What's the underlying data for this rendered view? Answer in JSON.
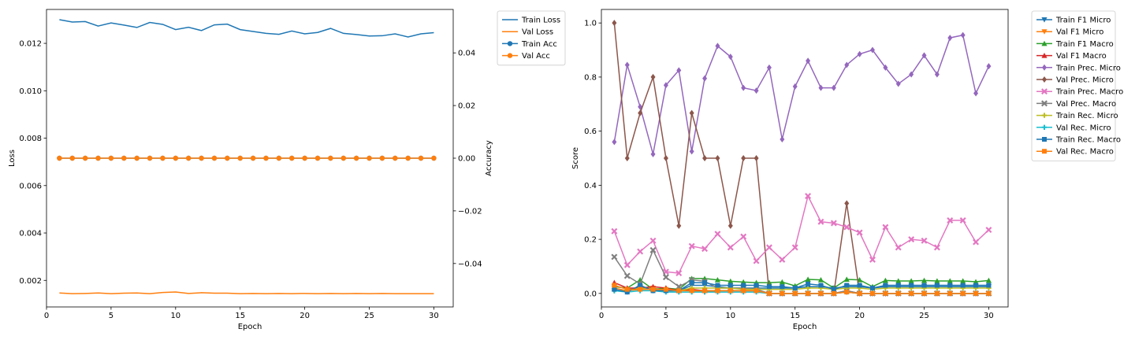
{
  "chart_data": [
    {
      "type": "line",
      "xlabel": "Epoch",
      "ylabel": "Loss",
      "ylabel_right": "Accuracy",
      "x": [
        1,
        2,
        3,
        4,
        5,
        6,
        7,
        8,
        9,
        10,
        11,
        12,
        13,
        14,
        15,
        16,
        17,
        18,
        19,
        20,
        21,
        22,
        23,
        24,
        25,
        26,
        27,
        28,
        29,
        30
      ],
      "xlim": [
        0,
        31.5
      ],
      "ylim": [
        0.00088,
        0.01343
      ],
      "ylim_right": [
        -0.0565,
        0.0565
      ],
      "xticks": [
        "0",
        "5",
        "10",
        "15",
        "20",
        "25",
        "30"
      ],
      "yticks": [
        "0.002",
        "0.004",
        "0.006",
        "0.008",
        "0.010",
        "0.012"
      ],
      "yticks_right": [
        "−0.04",
        "−0.02",
        "0.00",
        "0.02",
        "0.04"
      ],
      "legend_position": "outside-right",
      "series": [
        {
          "name": "Train Loss",
          "axis": "left",
          "color": "#1f77b4",
          "marker": "none",
          "values": [
            0.013,
            0.0129,
            0.01292,
            0.01273,
            0.01286,
            0.01277,
            0.01267,
            0.01288,
            0.0128,
            0.01258,
            0.01268,
            0.01254,
            0.01278,
            0.01281,
            0.01258,
            0.0125,
            0.01242,
            0.01238,
            0.01252,
            0.0124,
            0.01246,
            0.01263,
            0.01242,
            0.01237,
            0.01231,
            0.01232,
            0.0124,
            0.01227,
            0.0124,
            0.01245
          ]
        },
        {
          "name": "Val Loss",
          "axis": "left",
          "color": "#ff7f0e",
          "marker": "none",
          "values": [
            0.00147,
            0.00144,
            0.00145,
            0.00147,
            0.00144,
            0.00146,
            0.00147,
            0.00144,
            0.00149,
            0.00151,
            0.00145,
            0.00148,
            0.00146,
            0.00146,
            0.00144,
            0.00145,
            0.00144,
            0.00145,
            0.00144,
            0.00145,
            0.00144,
            0.00145,
            0.00144,
            0.00145,
            0.00144,
            0.00145,
            0.00144,
            0.00144,
            0.00144,
            0.00144
          ]
        },
        {
          "name": "Train Acc",
          "axis": "right",
          "color": "#1f77b4",
          "marker": "circle",
          "values": [
            0,
            0,
            0,
            0,
            0,
            0,
            0,
            0,
            0,
            0,
            0,
            0,
            0,
            0,
            0,
            0,
            0,
            0,
            0,
            0,
            0,
            0,
            0,
            0,
            0,
            0,
            0,
            0,
            0,
            0
          ]
        },
        {
          "name": "Val Acc",
          "axis": "right",
          "color": "#ff7f0e",
          "marker": "circle",
          "values": [
            0,
            0,
            0,
            0,
            0,
            0,
            0,
            0,
            0,
            0,
            0,
            0,
            0,
            0,
            0,
            0,
            0,
            0,
            0,
            0,
            0,
            0,
            0,
            0,
            0,
            0,
            0,
            0,
            0,
            0
          ]
        }
      ]
    },
    {
      "type": "line",
      "xlabel": "Epoch",
      "ylabel": "Score",
      "x": [
        1,
        2,
        3,
        4,
        5,
        6,
        7,
        8,
        9,
        10,
        11,
        12,
        13,
        14,
        15,
        16,
        17,
        18,
        19,
        20,
        21,
        22,
        23,
        24,
        25,
        26,
        27,
        28,
        29,
        30
      ],
      "xlim": [
        0,
        31.5
      ],
      "ylim": [
        -0.05,
        1.05
      ],
      "xticks": [
        "0",
        "5",
        "10",
        "15",
        "20",
        "25",
        "30"
      ],
      "yticks": [
        "0.0",
        "0.2",
        "0.4",
        "0.6",
        "0.8",
        "1.0"
      ],
      "legend_position": "outside-right",
      "series": [
        {
          "name": "Train F1 Micro",
          "color": "#1f77b4",
          "marker": "triangle-down",
          "values": [
            0.01,
            0.012,
            0.025,
            0.015,
            0.01,
            0.01,
            0.03,
            0.03,
            0.025,
            0.02,
            0.02,
            0.02,
            0.02,
            0.02,
            0.02,
            0.025,
            0.025,
            0.02,
            0.025,
            0.025,
            0.02,
            0.025,
            0.025,
            0.025,
            0.025,
            0.025,
            0.025,
            0.025,
            0.025,
            0.025
          ]
        },
        {
          "name": "Val F1 Micro",
          "color": "#ff7f0e",
          "marker": "triangle-down",
          "values": [
            0.02,
            0.01,
            0.015,
            0.02,
            0.01,
            0.01,
            0.01,
            0.005,
            0.01,
            0.01,
            0.01,
            0.01,
            0.0,
            0.0,
            0.0,
            0.0,
            0.0,
            0.0,
            0.005,
            0.0,
            0.0,
            0.0,
            0.0,
            0.0,
            0.0,
            0.0,
            0.0,
            0.0,
            0.0,
            0.0
          ]
        },
        {
          "name": "Train F1 Macro",
          "color": "#2ca02c",
          "marker": "triangle-up",
          "values": [
            0.025,
            0.02,
            0.05,
            0.015,
            0.02,
            0.015,
            0.055,
            0.055,
            0.05,
            0.045,
            0.042,
            0.04,
            0.04,
            0.042,
            0.028,
            0.052,
            0.05,
            0.02,
            0.052,
            0.05,
            0.025,
            0.048,
            0.046,
            0.046,
            0.048,
            0.046,
            0.046,
            0.046,
            0.043,
            0.048
          ]
        },
        {
          "name": "Val F1 Macro",
          "color": "#d62728",
          "marker": "triangle-up",
          "values": [
            0.04,
            0.02,
            0.02,
            0.025,
            0.02,
            0.01,
            0.015,
            0.01,
            0.01,
            0.01,
            0.01,
            0.01,
            0.0,
            0.0,
            0.0,
            0.0,
            0.0,
            0.0,
            0.01,
            0.0,
            0.0,
            0.0,
            0.0,
            0.0,
            0.0,
            0.0,
            0.0,
            0.0,
            0.0,
            0.0
          ]
        },
        {
          "name": "Train Prec. Micro",
          "color": "#9467bd",
          "marker": "diamond",
          "values": [
            0.56,
            0.845,
            0.69,
            0.515,
            0.77,
            0.825,
            0.525,
            0.795,
            0.915,
            0.875,
            0.76,
            0.75,
            0.835,
            0.57,
            0.765,
            0.86,
            0.76,
            0.76,
            0.845,
            0.885,
            0.9,
            0.835,
            0.775,
            0.81,
            0.88,
            0.81,
            0.945,
            0.955,
            0.74,
            0.84
          ]
        },
        {
          "name": "Val Prec. Micro",
          "color": "#8c564b",
          "marker": "diamond",
          "values": [
            1.0,
            0.5,
            0.667,
            0.8,
            0.5,
            0.25,
            0.667,
            0.5,
            0.5,
            0.25,
            0.5,
            0.5,
            0.0,
            0.0,
            0.0,
            0.0,
            0.0,
            0.0,
            0.333,
            0.0,
            0.0,
            0.0,
            0.0,
            0.0,
            0.0,
            0.0,
            0.0,
            0.0,
            0.0,
            0.0
          ]
        },
        {
          "name": "Train Prec. Macro",
          "color": "#e377c2",
          "marker": "x",
          "values": [
            0.23,
            0.105,
            0.155,
            0.195,
            0.08,
            0.075,
            0.175,
            0.165,
            0.22,
            0.17,
            0.21,
            0.12,
            0.17,
            0.125,
            0.17,
            0.36,
            0.265,
            0.26,
            0.245,
            0.225,
            0.125,
            0.245,
            0.17,
            0.2,
            0.195,
            0.17,
            0.27,
            0.27,
            0.19,
            0.235
          ]
        },
        {
          "name": "Val Prec. Macro",
          "color": "#7f7f7f",
          "marker": "x",
          "values": [
            0.135,
            0.065,
            0.035,
            0.16,
            0.06,
            0.025,
            0.05,
            0.045,
            0.02,
            0.02,
            0.02,
            0.015,
            0.0,
            0.0,
            0.0,
            0.0,
            0.0,
            0.0,
            0.01,
            0.0,
            0.0,
            0.0,
            0.0,
            0.0,
            0.0,
            0.0,
            0.0,
            0.0,
            0.0,
            0.0
          ]
        },
        {
          "name": "Train Rec. Micro",
          "color": "#bcbd22",
          "marker": "plus",
          "values": [
            0.01,
            0.01,
            0.02,
            0.015,
            0.01,
            0.01,
            0.02,
            0.02,
            0.02,
            0.02,
            0.015,
            0.015,
            0.015,
            0.015,
            0.015,
            0.02,
            0.02,
            0.015,
            0.02,
            0.02,
            0.015,
            0.02,
            0.02,
            0.02,
            0.02,
            0.02,
            0.02,
            0.02,
            0.02,
            0.02
          ]
        },
        {
          "name": "Val Rec. Micro",
          "color": "#17becf",
          "marker": "plus",
          "values": [
            0.01,
            0.005,
            0.01,
            0.01,
            0.005,
            0.005,
            0.005,
            0.005,
            0.005,
            0.005,
            0.005,
            0.005,
            0.0,
            0.0,
            0.0,
            0.0,
            0.0,
            0.0,
            0.005,
            0.0,
            0.0,
            0.0,
            0.0,
            0.0,
            0.0,
            0.0,
            0.0,
            0.0,
            0.0,
            0.0
          ]
        },
        {
          "name": "Train Rec. Macro",
          "color": "#1f77b4",
          "marker": "square",
          "values": [
            0.015,
            0.005,
            0.03,
            0.01,
            0.01,
            0.01,
            0.04,
            0.04,
            0.03,
            0.03,
            0.03,
            0.03,
            0.025,
            0.025,
            0.02,
            0.035,
            0.03,
            0.015,
            0.03,
            0.03,
            0.02,
            0.03,
            0.03,
            0.03,
            0.03,
            0.03,
            0.03,
            0.03,
            0.03,
            0.03
          ]
        },
        {
          "name": "Val Rec. Macro",
          "color": "#ff7f0e",
          "marker": "square",
          "values": [
            0.03,
            0.015,
            0.015,
            0.015,
            0.015,
            0.01,
            0.01,
            0.01,
            0.01,
            0.01,
            0.01,
            0.01,
            0.0,
            0.0,
            0.0,
            0.0,
            0.0,
            0.0,
            0.005,
            0.0,
            0.0,
            0.0,
            0.0,
            0.0,
            0.0,
            0.0,
            0.0,
            0.0,
            0.0,
            0.0
          ]
        }
      ]
    }
  ]
}
